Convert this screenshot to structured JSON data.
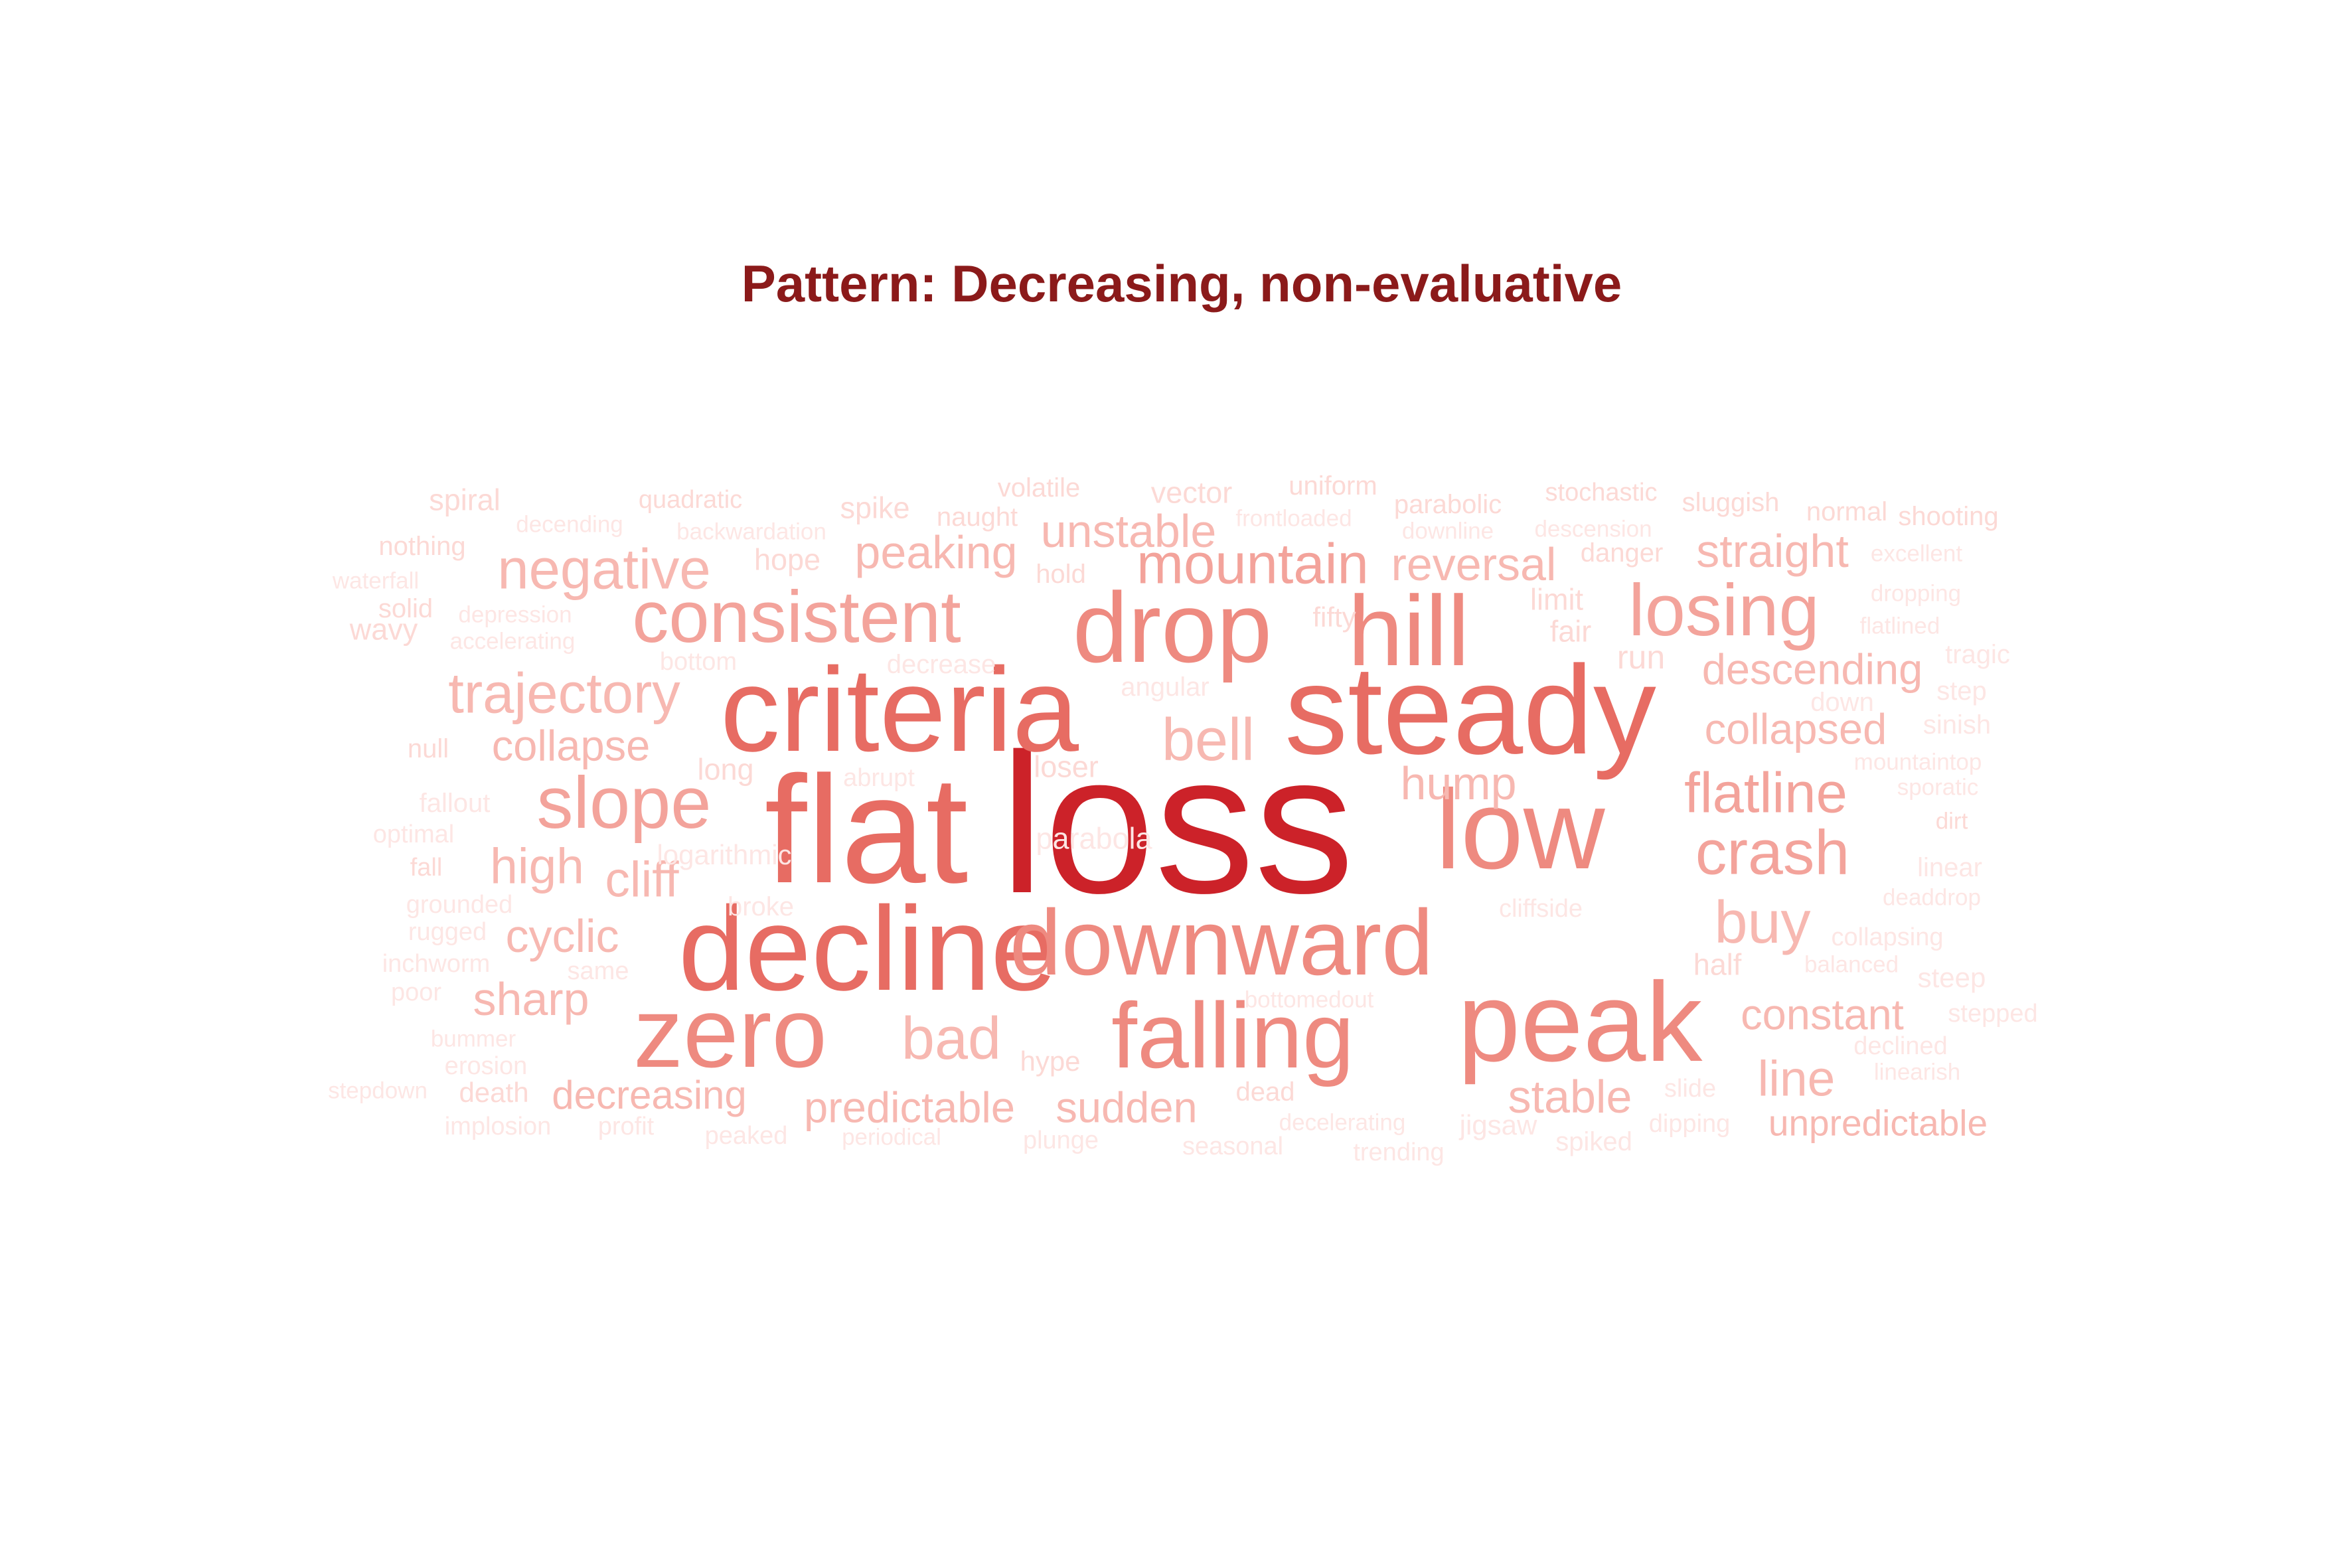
{
  "title": "Pattern: Decreasing, non-evaluative",
  "colors": {
    "title": "#8b1a1a",
    "scale": [
      "#fde6e4",
      "#fcd9d5",
      "#facbc5",
      "#f7b8b1",
      "#f3a39b",
      "#ee8a80",
      "#e76c63",
      "#dc4a44",
      "#cc2229"
    ]
  },
  "words": [
    {
      "text": "loss",
      "level": 9
    },
    {
      "text": "flat",
      "level": 7
    },
    {
      "text": "steady",
      "level": 7
    },
    {
      "text": "criteria",
      "level": 7
    },
    {
      "text": "decline",
      "level": 7
    },
    {
      "text": "low",
      "level": 6
    },
    {
      "text": "peak",
      "level": 6
    },
    {
      "text": "drop",
      "level": 6
    },
    {
      "text": "hill",
      "level": 6
    },
    {
      "text": "zero",
      "level": 6
    },
    {
      "text": "downward",
      "level": 6
    },
    {
      "text": "falling",
      "level": 6
    },
    {
      "text": "consistent",
      "level": 5
    },
    {
      "text": "losing",
      "level": 5
    },
    {
      "text": "slope",
      "level": 5
    },
    {
      "text": "crash",
      "level": 5
    },
    {
      "text": "flatline",
      "level": 5
    },
    {
      "text": "mountain",
      "level": 5
    },
    {
      "text": "bell",
      "level": 4
    },
    {
      "text": "negative",
      "level": 4
    },
    {
      "text": "trajectory",
      "level": 4
    },
    {
      "text": "buy",
      "level": 4
    },
    {
      "text": "bad",
      "level": 4
    },
    {
      "text": "reversal",
      "level": 4
    },
    {
      "text": "unstable",
      "level": 4
    },
    {
      "text": "peaking",
      "level": 4
    },
    {
      "text": "straight",
      "level": 4
    },
    {
      "text": "descending",
      "level": 4
    },
    {
      "text": "collapsed",
      "level": 4
    },
    {
      "text": "collapse",
      "level": 4
    },
    {
      "text": "high",
      "level": 4
    },
    {
      "text": "cliff",
      "level": 4
    },
    {
      "text": "cyclic",
      "level": 4
    },
    {
      "text": "sharp",
      "level": 4
    },
    {
      "text": "stable",
      "level": 4
    },
    {
      "text": "constant",
      "level": 4
    },
    {
      "text": "line",
      "level": 4
    },
    {
      "text": "hump",
      "level": 4
    },
    {
      "text": "predictable",
      "level": 4
    },
    {
      "text": "sudden",
      "level": 4
    },
    {
      "text": "decreasing",
      "level": 4
    },
    {
      "text": "unpredictable",
      "level": 4
    },
    {
      "text": "spiral",
      "level": 2
    },
    {
      "text": "quadratic",
      "level": 2
    },
    {
      "text": "spike",
      "level": 2
    },
    {
      "text": "volatile",
      "level": 2
    },
    {
      "text": "vector",
      "level": 2
    },
    {
      "text": "uniform",
      "level": 2
    },
    {
      "text": "parabolic",
      "level": 2
    },
    {
      "text": "stochastic",
      "level": 2
    },
    {
      "text": "sluggish",
      "level": 2
    },
    {
      "text": "normal",
      "level": 2
    },
    {
      "text": "shooting",
      "level": 2
    },
    {
      "text": "decending",
      "level": 1
    },
    {
      "text": "backwardation",
      "level": 1
    },
    {
      "text": "naught",
      "level": 2
    },
    {
      "text": "frontloaded",
      "level": 1
    },
    {
      "text": "downline",
      "level": 1
    },
    {
      "text": "descension",
      "level": 1
    },
    {
      "text": "nothing",
      "level": 2
    },
    {
      "text": "hope",
      "level": 2
    },
    {
      "text": "danger",
      "level": 2
    },
    {
      "text": "excellent",
      "level": 1
    },
    {
      "text": "waterfall",
      "level": 1
    },
    {
      "text": "hold",
      "level": 2
    },
    {
      "text": "dropping",
      "level": 1
    },
    {
      "text": "solid",
      "level": 2
    },
    {
      "text": "depression",
      "level": 1
    },
    {
      "text": "fifty",
      "level": 2
    },
    {
      "text": "limit",
      "level": 2
    },
    {
      "text": "flatlined",
      "level": 1
    },
    {
      "text": "wavy",
      "level": 2
    },
    {
      "text": "accelerating",
      "level": 1
    },
    {
      "text": "fair",
      "level": 2
    },
    {
      "text": "run",
      "level": 2
    },
    {
      "text": "tragic",
      "level": 1
    },
    {
      "text": "bottom",
      "level": 1
    },
    {
      "text": "decrease",
      "level": 1
    },
    {
      "text": "angular",
      "level": 1
    },
    {
      "text": "down",
      "level": 1
    },
    {
      "text": "step",
      "level": 1
    },
    {
      "text": "sinish",
      "level": 1
    },
    {
      "text": "null",
      "level": 2
    },
    {
      "text": "long",
      "level": 2
    },
    {
      "text": "abrupt",
      "level": 1
    },
    {
      "text": "loser",
      "level": 2
    },
    {
      "text": "mountaintop",
      "level": 1
    },
    {
      "text": "fallout",
      "level": 1
    },
    {
      "text": "sporatic",
      "level": 1
    },
    {
      "text": "optimal",
      "level": 1
    },
    {
      "text": "dirt",
      "level": 2
    },
    {
      "text": "logarithmic",
      "level": 1
    },
    {
      "text": "fall",
      "level": 2
    },
    {
      "text": "parabola",
      "level": 1
    },
    {
      "text": "linear",
      "level": 1
    },
    {
      "text": "grounded",
      "level": 1
    },
    {
      "text": "broke",
      "level": 1
    },
    {
      "text": "cliffside",
      "level": 1
    },
    {
      "text": "deaddrop",
      "level": 1
    },
    {
      "text": "rugged",
      "level": 1
    },
    {
      "text": "collapsing",
      "level": 1
    },
    {
      "text": "inchworm",
      "level": 1
    },
    {
      "text": "same",
      "level": 1
    },
    {
      "text": "half",
      "level": 2
    },
    {
      "text": "balanced",
      "level": 1
    },
    {
      "text": "steep",
      "level": 1
    },
    {
      "text": "poor",
      "level": 1
    },
    {
      "text": "bottomedout",
      "level": 1
    },
    {
      "text": "stepped",
      "level": 1
    },
    {
      "text": "bummer",
      "level": 1
    },
    {
      "text": "declined",
      "level": 1
    },
    {
      "text": "erosion",
      "level": 1
    },
    {
      "text": "hype",
      "level": 2
    },
    {
      "text": "linearish",
      "level": 1
    },
    {
      "text": "stepdown",
      "level": 1
    },
    {
      "text": "death",
      "level": 2
    },
    {
      "text": "dead",
      "level": 2
    },
    {
      "text": "slide",
      "level": 1
    },
    {
      "text": "implosion",
      "level": 1
    },
    {
      "text": "profit",
      "level": 1
    },
    {
      "text": "decelerating",
      "level": 1
    },
    {
      "text": "jigsaw",
      "level": 1
    },
    {
      "text": "dipping",
      "level": 1
    },
    {
      "text": "peaked",
      "level": 1
    },
    {
      "text": "periodical",
      "level": 1
    },
    {
      "text": "plunge",
      "level": 1
    },
    {
      "text": "seasonal",
      "level": 1
    },
    {
      "text": "trending",
      "level": 1
    },
    {
      "text": "spiked",
      "level": 1
    }
  ]
}
